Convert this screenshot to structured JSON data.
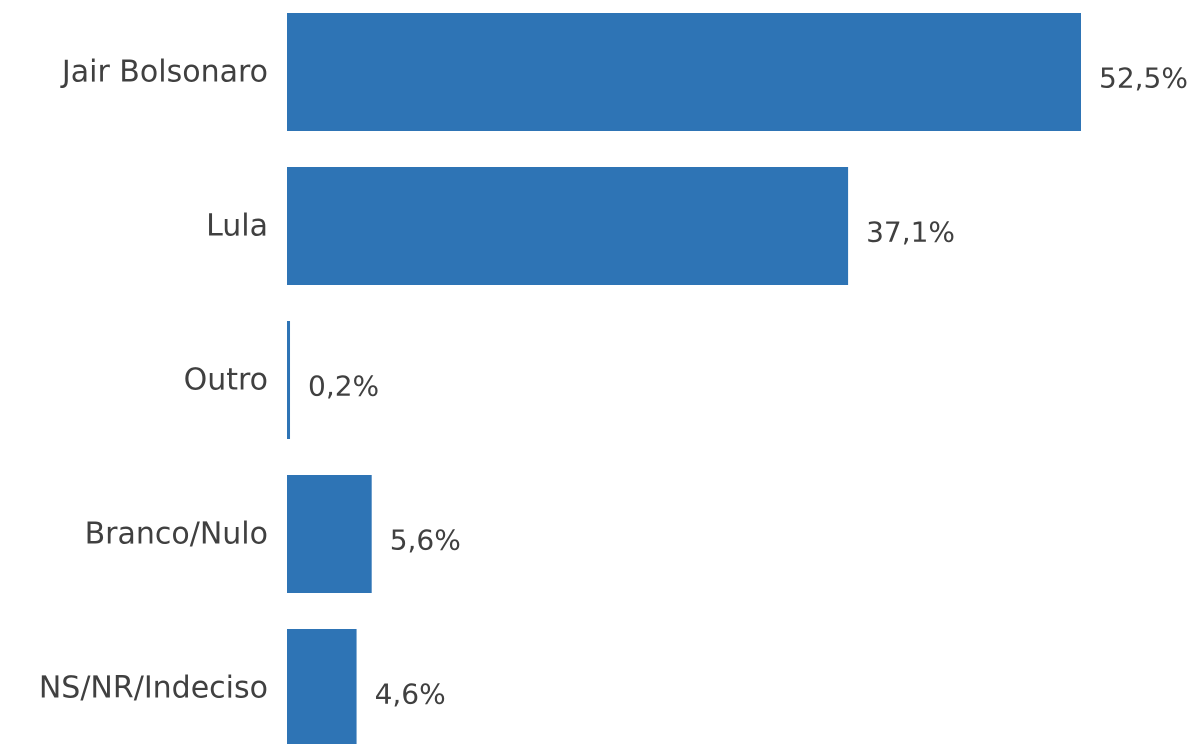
{
  "chart_data": {
    "type": "bar",
    "orientation": "horizontal",
    "categories": [
      "Jair Bolsonaro",
      "Lula",
      "Outro",
      "Branco/Nulo",
      "NS/NR/Indeciso"
    ],
    "values": [
      52.5,
      37.1,
      0.2,
      5.6,
      4.6
    ],
    "value_labels": [
      "52,5%",
      "37,1%",
      "0,2%",
      "5,6%",
      "4,6%"
    ],
    "xlim": [
      0,
      52.5
    ],
    "grid": false,
    "legend": "none",
    "bar_color": "#2e74b5",
    "text_color": "#404040"
  }
}
